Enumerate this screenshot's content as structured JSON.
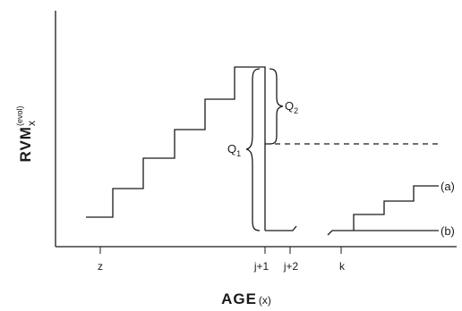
{
  "diagram": {
    "y_axis_label": "RVM",
    "y_axis_superscript": "(evol)",
    "y_axis_subscript": "x",
    "x_axis_label": "AGE",
    "x_axis_label_suffix": "(x)",
    "x_ticks": [
      "z",
      "j+1",
      "j+2",
      "k"
    ],
    "brace_labels": {
      "q1": "Q",
      "q1_sub": "1",
      "q2": "Q",
      "q2_sub": "2"
    },
    "curve_labels": {
      "a": "(a)",
      "b": "(b)"
    }
  }
}
